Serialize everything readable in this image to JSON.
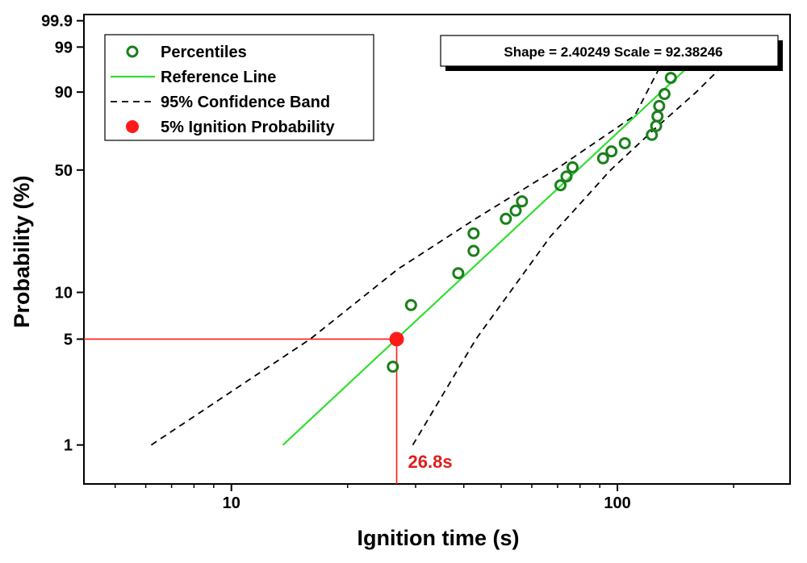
{
  "chart_data": {
    "type": "scatter",
    "title": "",
    "xlabel": "Ignition time (s)",
    "ylabel": "Probability (%)",
    "x_scale": "log",
    "y_scale": "weibull-probability",
    "xlim": [
      4.15,
      280
    ],
    "ylim": [
      0.55,
      99.95
    ],
    "x_ticks": [
      {
        "value": 10,
        "label": "10"
      },
      {
        "value": 100,
        "label": "100"
      }
    ],
    "y_ticks": [
      {
        "value": 1,
        "label": "1"
      },
      {
        "value": 5,
        "label": "5"
      },
      {
        "value": 10,
        "label": "10"
      },
      {
        "value": 50,
        "label": "50"
      },
      {
        "value": 90,
        "label": "90"
      },
      {
        "value": 99,
        "label": "99"
      },
      {
        "value": 99.9,
        "label": "99.9"
      }
    ],
    "grid": false,
    "legend_position": "top-left",
    "series": [
      {
        "name": "Percentiles",
        "kind": "markers",
        "color": "#1a7f1a",
        "points": [
          {
            "x": 26.2,
            "y": 3.3
          },
          {
            "x": 29.2,
            "y": 8.3
          },
          {
            "x": 38.7,
            "y": 13.2
          },
          {
            "x": 42.4,
            "y": 18.1
          },
          {
            "x": 42.4,
            "y": 23.0
          },
          {
            "x": 51.4,
            "y": 27.9
          },
          {
            "x": 54.5,
            "y": 31.0
          },
          {
            "x": 56.6,
            "y": 34.8
          },
          {
            "x": 71.2,
            "y": 42.2
          },
          {
            "x": 73.8,
            "y": 46.6
          },
          {
            "x": 76.5,
            "y": 51.5
          },
          {
            "x": 91.8,
            "y": 56.4
          },
          {
            "x": 96.5,
            "y": 60.3
          },
          {
            "x": 104.5,
            "y": 64.9
          },
          {
            "x": 122.8,
            "y": 69.6
          },
          {
            "x": 126.0,
            "y": 74.5
          },
          {
            "x": 127.0,
            "y": 79.5
          },
          {
            "x": 128.3,
            "y": 84.4
          },
          {
            "x": 132.4,
            "y": 89.3
          },
          {
            "x": 137.5,
            "y": 94.3
          }
        ]
      },
      {
        "name": "Reference Line",
        "kind": "line",
        "color": "#33dd33",
        "points": [
          {
            "x": 13.6,
            "y": 1.0
          },
          {
            "x": 173.0,
            "y": 99.0
          }
        ]
      },
      {
        "name": "95% Confidence Band",
        "kind": "dashed",
        "color": "#000000",
        "segments": [
          {
            "points": [
              {
                "x": 6.2,
                "y": 1.0
              },
              {
                "x": 16.0,
                "y": 5.0
              },
              {
                "x": 27.0,
                "y": 14.0
              },
              {
                "x": 43.0,
                "y": 28.0
              },
              {
                "x": 70.0,
                "y": 51.0
              },
              {
                "x": 111.0,
                "y": 80.0
              },
              {
                "x": 137.0,
                "y": 99.0
              }
            ]
          },
          {
            "points": [
              {
                "x": 29.5,
                "y": 1.0
              },
              {
                "x": 43.0,
                "y": 5.0
              },
              {
                "x": 67.0,
                "y": 22.0
              },
              {
                "x": 96.0,
                "y": 50.0
              },
              {
                "x": 125.0,
                "y": 73.0
              },
              {
                "x": 160.0,
                "y": 90.0
              },
              {
                "x": 210.0,
                "y": 99.0
              }
            ]
          }
        ]
      },
      {
        "name": "5% Ignition Probability",
        "kind": "marker-filled",
        "color": "#ff1a1a",
        "points": [
          {
            "x": 26.8,
            "y": 5.0
          }
        ]
      }
    ],
    "annotations": [
      {
        "text": "Shape = 2.40249  Scale = 92.38246"
      },
      {
        "text": "26.8s",
        "x": 26.8,
        "y": 5.0,
        "color": "#e01c1c"
      }
    ]
  }
}
